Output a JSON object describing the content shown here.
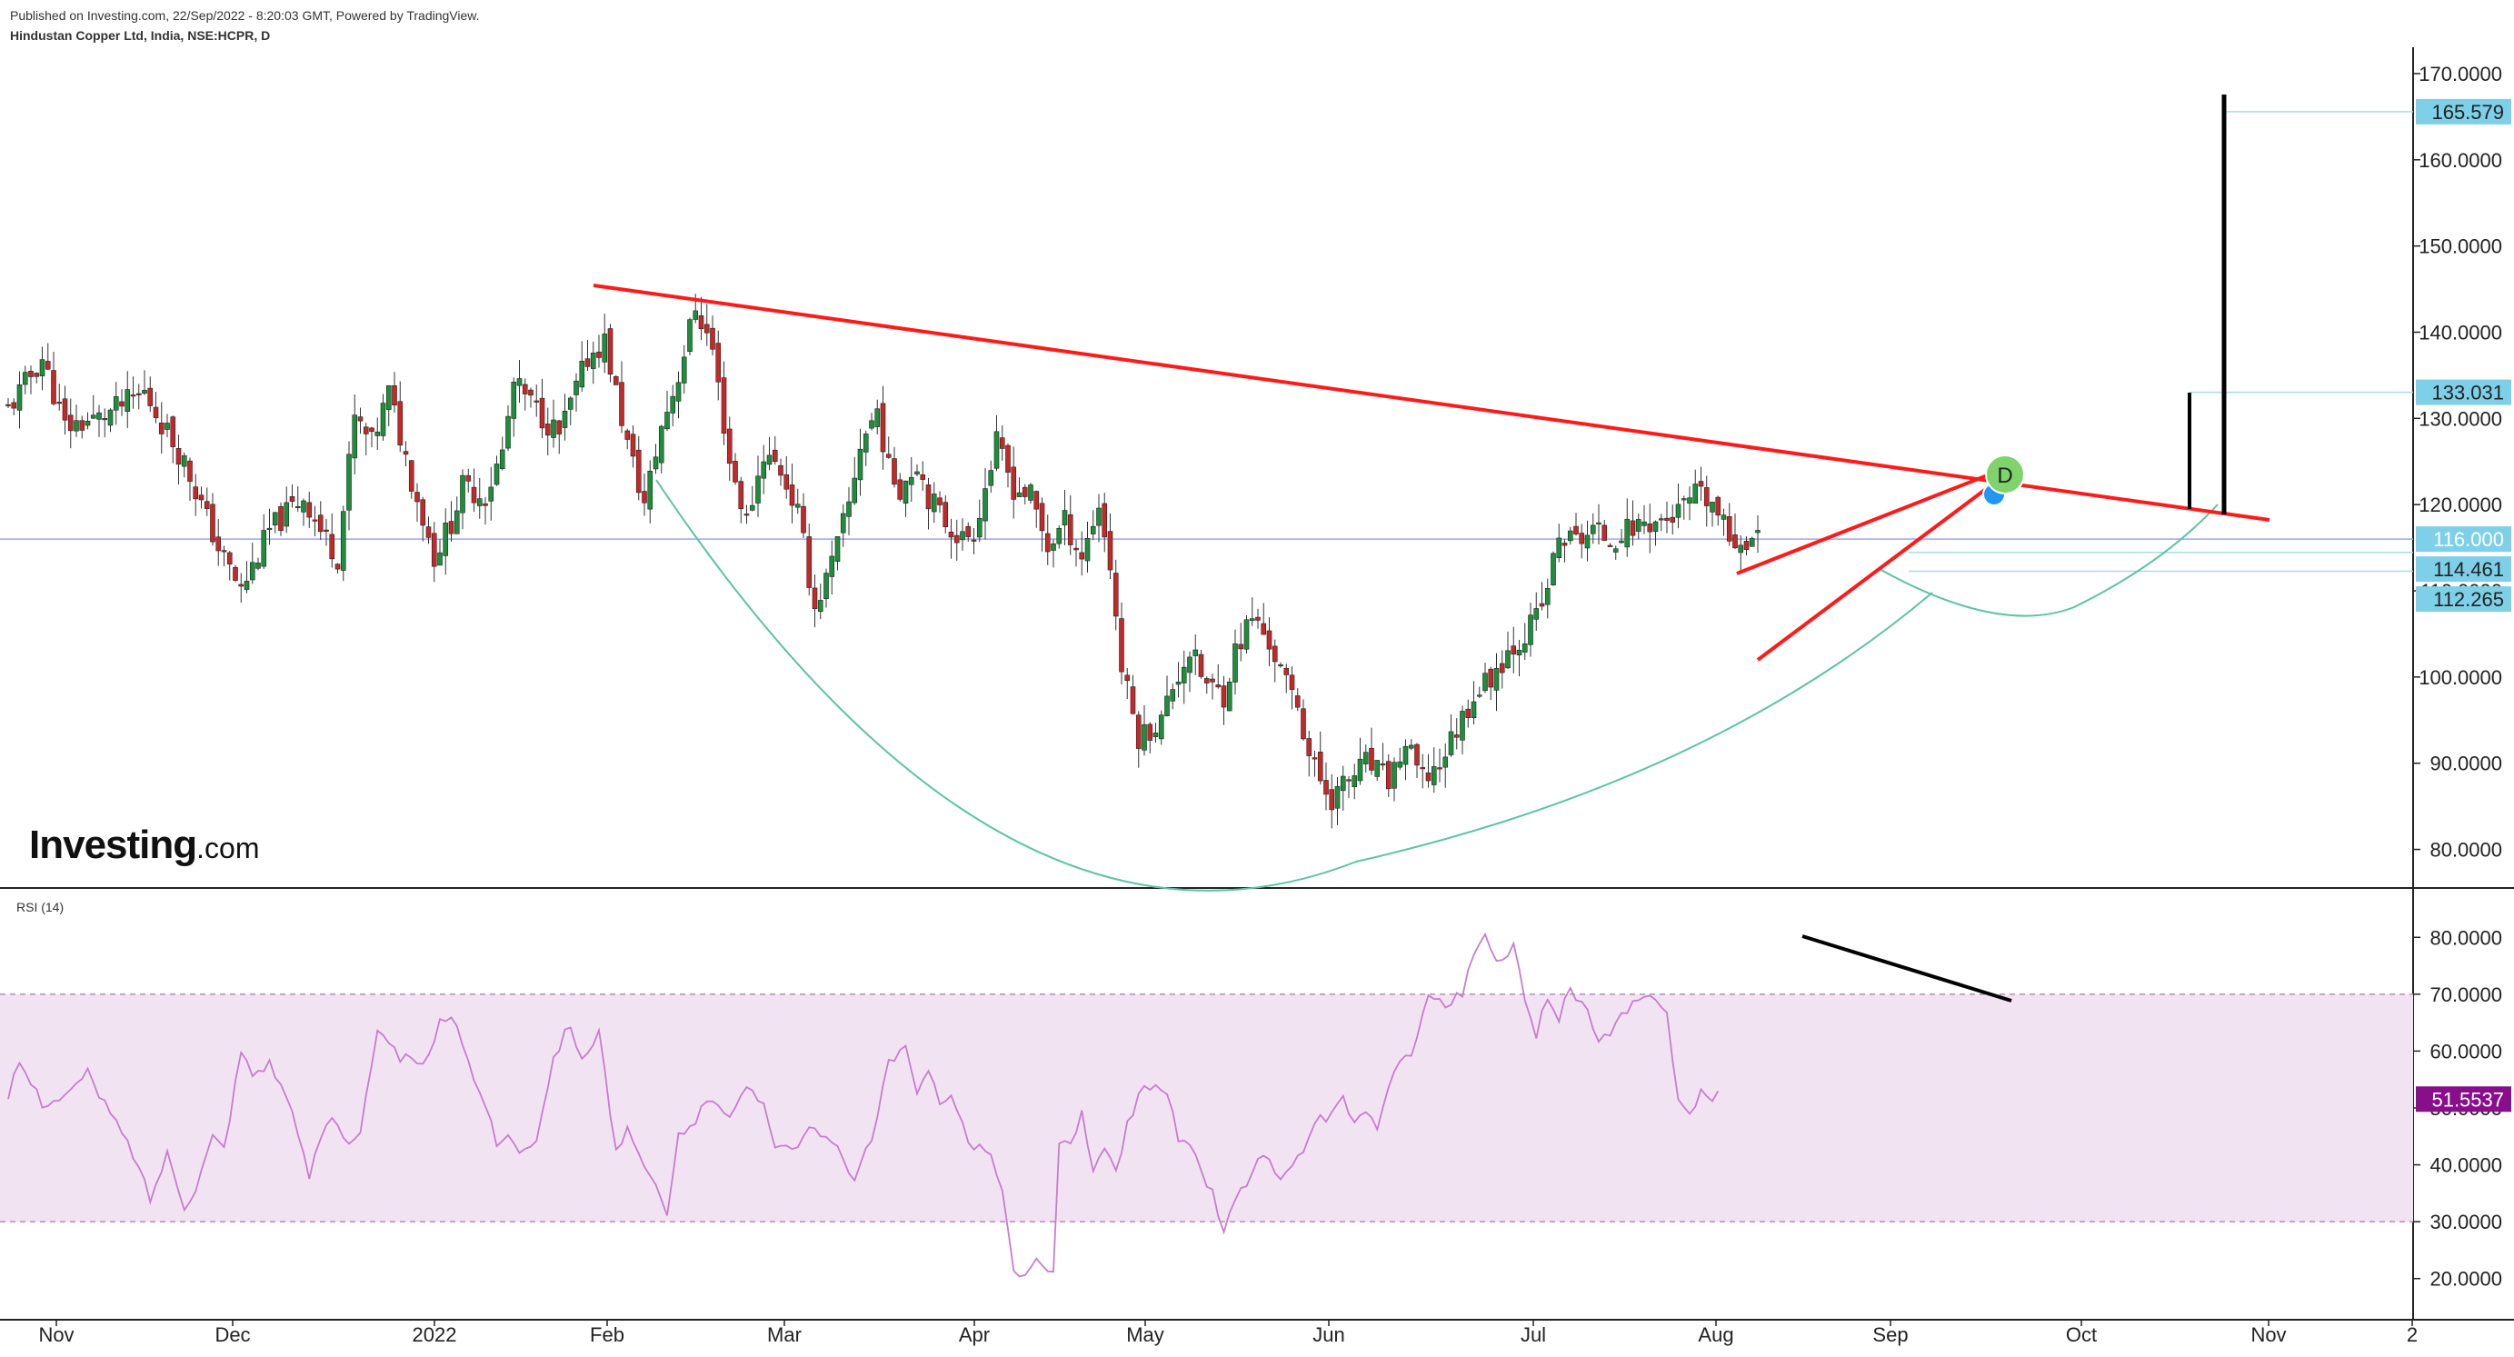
{
  "header": {
    "published": "Published on Investing.com, 22/Sep/2022 - 8:20:03 GMT, Powered by TradingView.",
    "symbol": "Hindustan Copper Ltd, India, NSE:HCPR, D"
  },
  "logo": {
    "brand": "Investing",
    "domain": ".com"
  },
  "rsi_title": "RSI (14)",
  "colors": {
    "up_candle": "#26a69a",
    "up_candle_body": "#1b8f3a",
    "down_candle": "#c62828",
    "trendline": "#ff1a1a",
    "cup_arc": "#5cc2a6",
    "rsi_line": "#c77dcd",
    "rsi_band": "#f2e3f3",
    "last_price_line": "#9aa8ee",
    "price_box": "#7dd0e8",
    "rsi_box": "#880e8c"
  },
  "chart_data": [
    {
      "type": "candlestick",
      "x_axis": {
        "tick_labels": [
          "Nov",
          "Dec",
          "2022",
          "Feb",
          "Mar",
          "Apr",
          "May",
          "Jun",
          "Jul",
          "Aug",
          "Sep",
          "Oct",
          "Nov",
          "2"
        ]
      },
      "y_axis": {
        "ylim": [
          77,
          172
        ],
        "tick_labels": [
          "80.0000",
          "90.0000",
          "100.0000",
          "110.0000",
          "120.0000",
          "130.0000",
          "140.0000",
          "150.0000",
          "160.0000",
          "170.0000"
        ],
        "tick_values": [
          80,
          90,
          100,
          110,
          120,
          130,
          140,
          150,
          160,
          170
        ]
      },
      "price_path": [
        [
          0,
          131
        ],
        [
          6,
          137
        ],
        [
          10,
          129
        ],
        [
          16,
          130
        ],
        [
          24,
          133
        ],
        [
          31,
          125
        ],
        [
          37,
          115
        ],
        [
          41,
          110
        ],
        [
          46,
          117
        ],
        [
          52,
          121
        ],
        [
          55,
          117
        ],
        [
          58,
          114
        ],
        [
          61,
          130
        ],
        [
          64,
          127
        ],
        [
          67,
          133
        ],
        [
          71,
          123
        ],
        [
          75,
          114
        ],
        [
          78,
          118
        ],
        [
          80,
          122
        ],
        [
          84,
          121
        ],
        [
          87,
          126
        ],
        [
          89,
          134
        ],
        [
          93,
          131
        ],
        [
          97,
          128
        ],
        [
          102,
          137
        ],
        [
          105,
          139
        ],
        [
          109,
          127
        ],
        [
          112,
          120
        ],
        [
          115,
          129
        ],
        [
          118,
          135
        ],
        [
          121,
          143
        ],
        [
          124,
          138
        ],
        [
          127,
          125
        ],
        [
          130,
          118
        ],
        [
          133,
          126
        ],
        [
          136,
          124
        ],
        [
          139,
          119
        ],
        [
          142,
          108
        ],
        [
          145,
          113
        ],
        [
          148,
          120
        ],
        [
          150,
          127
        ],
        [
          153,
          131
        ],
        [
          155,
          124
        ],
        [
          157,
          122
        ],
        [
          160,
          125
        ],
        [
          162,
          121
        ],
        [
          165,
          118
        ],
        [
          168,
          116
        ],
        [
          170,
          117
        ],
        [
          174,
          127
        ],
        [
          177,
          122
        ],
        [
          180,
          121
        ],
        [
          183,
          115
        ],
        [
          186,
          118
        ],
        [
          189,
          114
        ],
        [
          192,
          120
        ],
        [
          194,
          113
        ],
        [
          196,
          101
        ],
        [
          199,
          93
        ],
        [
          203,
          95
        ],
        [
          205,
          99
        ],
        [
          208,
          103
        ],
        [
          211,
          99
        ],
        [
          214,
          98
        ],
        [
          216,
          103
        ],
        [
          219,
          107
        ],
        [
          222,
          104
        ],
        [
          225,
          99
        ],
        [
          227,
          97
        ],
        [
          229,
          91
        ],
        [
          231,
          88
        ],
        [
          233,
          86
        ],
        [
          236,
          88
        ],
        [
          239,
          90
        ],
        [
          243,
          88
        ],
        [
          246,
          92
        ],
        [
          249,
          88
        ],
        [
          252,
          90
        ],
        [
          255,
          94
        ],
        [
          258,
          98
        ],
        [
          261,
          100
        ],
        [
          264,
          103
        ],
        [
          267,
          105
        ],
        [
          270,
          108
        ],
        [
          273,
          116
        ],
        [
          276,
          116
        ],
        [
          279,
          117
        ],
        [
          282,
          116
        ],
        [
          285,
          117
        ],
        [
          288,
          118
        ],
        [
          291,
          118
        ],
        [
          294,
          119
        ],
        [
          297,
          121
        ],
        [
          300,
          120
        ],
        [
          303,
          116
        ],
        [
          306,
          116
        ],
        [
          308,
          116
        ]
      ],
      "rsi_path": [
        [
          0,
          52
        ],
        [
          2,
          58
        ],
        [
          6,
          51
        ],
        [
          10,
          52
        ],
        [
          14,
          56
        ],
        [
          18,
          49
        ],
        [
          22,
          42
        ],
        [
          25,
          34
        ],
        [
          28,
          42
        ],
        [
          31,
          33
        ],
        [
          33,
          36
        ],
        [
          36,
          45
        ],
        [
          38,
          43
        ],
        [
          41,
          60
        ],
        [
          43,
          56
        ],
        [
          46,
          58
        ],
        [
          49,
          52
        ],
        [
          53,
          38
        ],
        [
          55,
          45
        ],
        [
          57,
          49
        ],
        [
          60,
          44
        ],
        [
          62,
          46
        ],
        [
          65,
          63
        ],
        [
          69,
          59
        ],
        [
          73,
          57
        ],
        [
          76,
          65
        ],
        [
          79,
          65
        ],
        [
          82,
          55
        ],
        [
          84,
          51
        ],
        [
          86,
          43
        ],
        [
          88,
          46
        ],
        [
          90,
          42
        ],
        [
          93,
          45
        ],
        [
          96,
          59
        ],
        [
          99,
          65
        ],
        [
          101,
          58
        ],
        [
          104,
          64
        ],
        [
          107,
          42
        ],
        [
          109,
          46
        ],
        [
          111,
          41
        ],
        [
          113,
          38
        ],
        [
          116,
          31
        ],
        [
          118,
          45
        ],
        [
          121,
          48
        ],
        [
          124,
          52
        ],
        [
          127,
          49
        ],
        [
          130,
          53
        ],
        [
          133,
          51
        ],
        [
          135,
          44
        ],
        [
          138,
          43
        ],
        [
          141,
          46
        ],
        [
          145,
          44
        ],
        [
          149,
          38
        ],
        [
          152,
          44
        ],
        [
          155,
          58
        ],
        [
          158,
          60
        ],
        [
          160,
          52
        ],
        [
          162,
          57
        ],
        [
          164,
          51
        ],
        [
          166,
          53
        ],
        [
          169,
          44
        ],
        [
          172,
          43
        ],
        [
          174,
          39
        ],
        [
          175,
          35
        ],
        [
          176,
          29
        ],
        [
          177,
          21
        ],
        [
          179,
          20
        ],
        [
          181,
          23
        ],
        [
          183,
          21
        ],
        [
          184,
          22
        ],
        [
          185,
          44
        ],
        [
          187,
          43
        ],
        [
          189,
          49
        ],
        [
          191,
          38
        ],
        [
          193,
          43
        ],
        [
          195,
          39
        ],
        [
          197,
          47
        ],
        [
          199,
          52
        ],
        [
          202,
          55
        ],
        [
          205,
          50
        ],
        [
          206,
          44
        ],
        [
          208,
          43
        ],
        [
          210,
          39
        ],
        [
          212,
          35
        ],
        [
          214,
          28
        ],
        [
          216,
          34
        ],
        [
          218,
          37
        ],
        [
          221,
          42
        ],
        [
          224,
          37
        ],
        [
          226,
          39
        ],
        [
          228,
          43
        ],
        [
          231,
          48
        ],
        [
          233,
          49
        ],
        [
          235,
          52
        ],
        [
          237,
          47
        ],
        [
          239,
          50
        ],
        [
          241,
          46
        ],
        [
          243,
          53
        ],
        [
          245,
          58
        ],
        [
          247,
          60
        ],
        [
          250,
          70
        ],
        [
          253,
          68
        ],
        [
          256,
          70
        ],
        [
          258,
          77
        ],
        [
          260,
          80
        ],
        [
          262,
          75
        ],
        [
          265,
          79
        ],
        [
          267,
          68
        ],
        [
          269,
          63
        ],
        [
          271,
          70
        ],
        [
          273,
          66
        ],
        [
          275,
          71
        ],
        [
          278,
          67
        ],
        [
          280,
          61
        ],
        [
          282,
          63
        ],
        [
          284,
          66
        ],
        [
          286,
          68
        ],
        [
          288,
          69
        ],
        [
          290,
          70
        ],
        [
          292,
          67
        ],
        [
          294,
          51
        ],
        [
          296,
          49
        ],
        [
          298,
          53
        ],
        [
          300,
          51
        ],
        [
          301,
          52
        ]
      ],
      "price_levels": [
        {
          "label": "165.579",
          "value": 165.579
        },
        {
          "label": "133.031",
          "value": 133.031
        },
        {
          "label": "116.000",
          "value": 116.0
        },
        {
          "label": "114.461",
          "value": 114.461
        },
        {
          "label": "112.265",
          "value": 112.265
        }
      ],
      "pattern_marker": "D"
    },
    {
      "type": "line",
      "name": "RSI (14)",
      "y_axis": {
        "ylim": [
          15,
          85
        ],
        "tick_labels": [
          "20.0000",
          "30.0000",
          "40.0000",
          "50.0000",
          "60.0000",
          "70.0000",
          "80.0000"
        ],
        "tick_values": [
          20,
          30,
          40,
          50,
          60,
          70,
          80
        ]
      },
      "band": [
        30,
        70
      ],
      "last_value": {
        "label": "51.5537",
        "value": 51.5537
      }
    }
  ]
}
